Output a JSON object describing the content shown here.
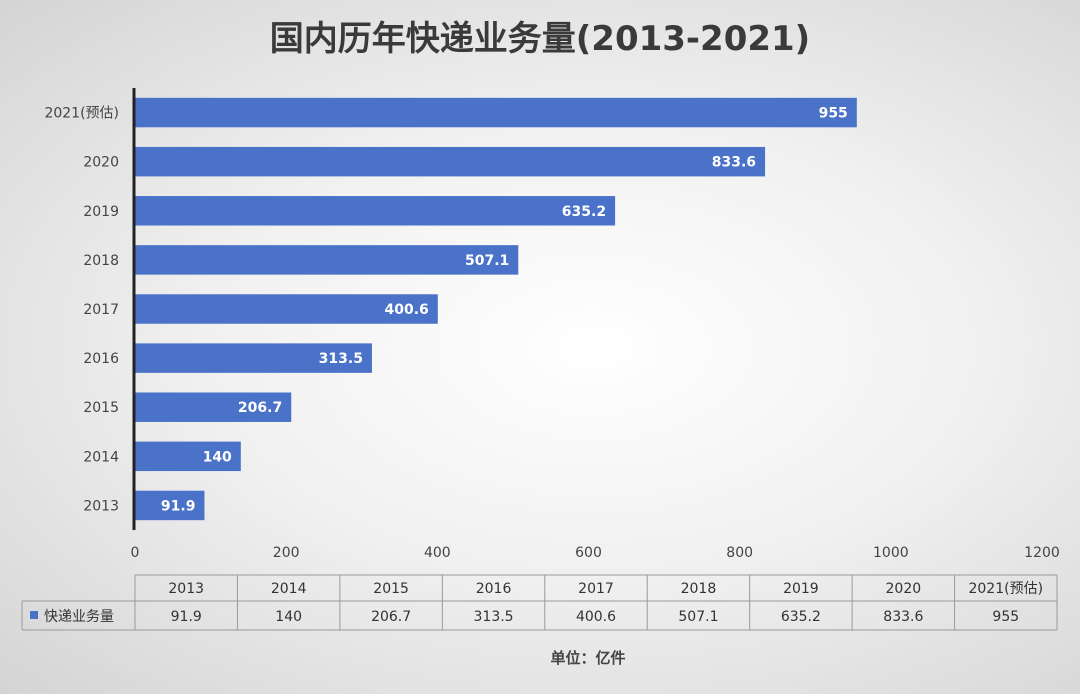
{
  "chart_data": {
    "type": "bar",
    "orientation": "horizontal",
    "title": "国内历年快递业务量(2013-2021)",
    "categories": [
      "2013",
      "2014",
      "2015",
      "2016",
      "2017",
      "2018",
      "2019",
      "2020",
      "2021(预估)"
    ],
    "series": [
      {
        "name": "快递业务量",
        "values": [
          91.9,
          140,
          206.7,
          313.5,
          400.6,
          507.1,
          635.2,
          833.6,
          955
        ],
        "value_labels": [
          "91.9",
          "140",
          "206.7",
          "313.5",
          "400.6",
          "507.1",
          "635.2",
          "833.6",
          "955"
        ]
      }
    ],
    "xlim": [
      0,
      1200
    ],
    "ticks": [
      0,
      200,
      400,
      600,
      800,
      1000,
      1200
    ],
    "grid": false,
    "data_table": true,
    "unit_note": "单位：亿件",
    "colors": {
      "bar": "#4a72c8",
      "axis": "#222222",
      "table_border": "#9a9a9a",
      "legend_key": "#4a72c8"
    }
  }
}
